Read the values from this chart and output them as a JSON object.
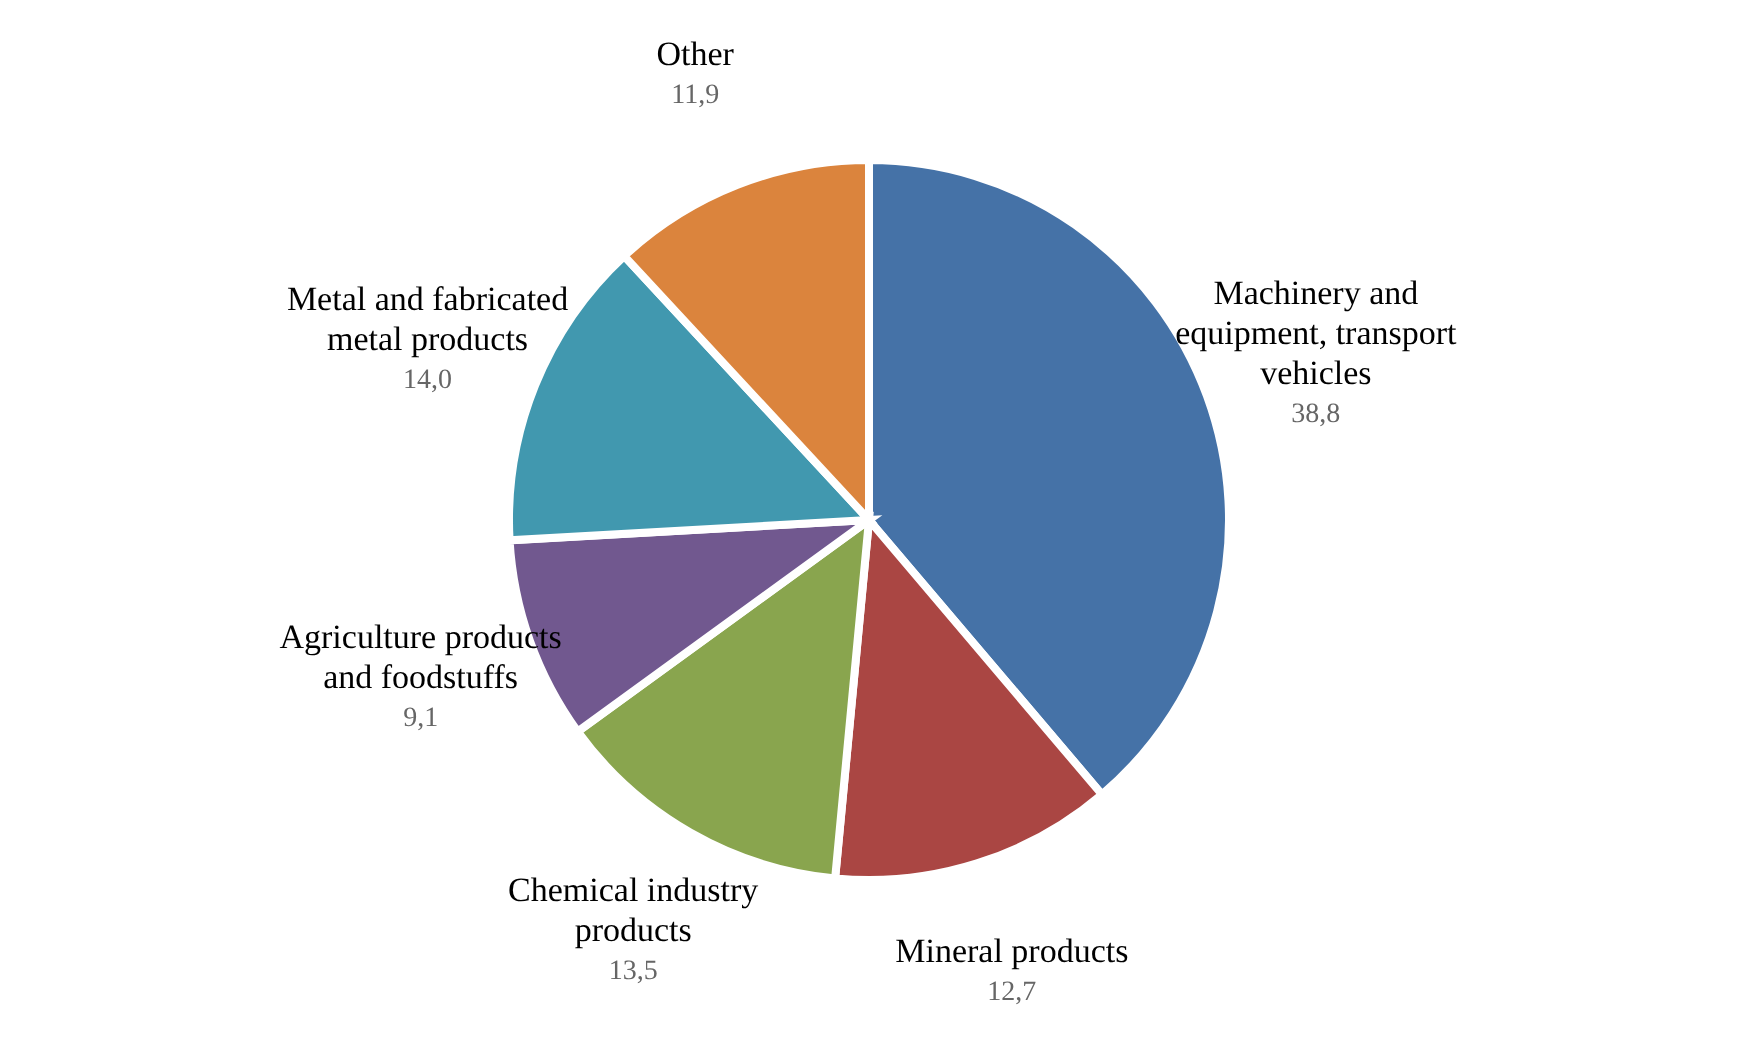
{
  "chart_data": {
    "type": "pie",
    "categories": [
      "Machinery and equipment, transport vehicles",
      "Mineral products",
      "Chemical industry products",
      "Agriculture products and foodstuffs",
      "Metal and fabricated metal products",
      "Other"
    ],
    "values": [
      38.8,
      12.7,
      13.5,
      9.1,
      14.0,
      11.9
    ],
    "value_labels": [
      "38,8",
      "12,7",
      "13,5",
      "9,1",
      "14,0",
      "11,9"
    ],
    "colors": [
      "#4572a7",
      "#aa4643",
      "#89a54e",
      "#71588f",
      "#4198af",
      "#db843d"
    ]
  }
}
